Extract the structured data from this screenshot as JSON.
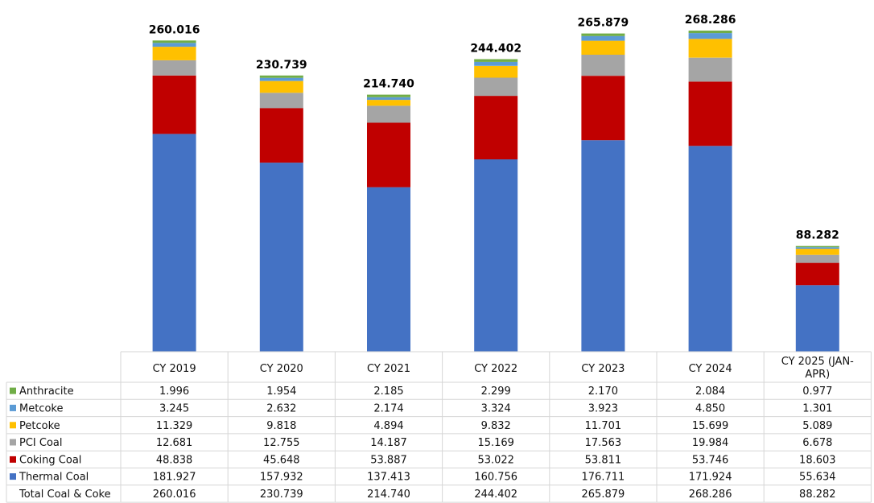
{
  "chart_data": {
    "type": "bar",
    "stacked": true,
    "categories": [
      "CY 2019",
      "CY 2020",
      "CY 2021",
      "CY 2022",
      "CY 2023",
      "CY 2024",
      "CY 2025 (JAN-APR)"
    ],
    "series": [
      {
        "name": "Thermal Coal",
        "color": "#4472C4",
        "values": [
          181.927,
          157.932,
          137.413,
          160.756,
          176.711,
          171.924,
          55.634
        ]
      },
      {
        "name": "Coking Coal",
        "color": "#C00000",
        "values": [
          48.838,
          45.648,
          53.887,
          53.022,
          53.811,
          53.746,
          18.603
        ]
      },
      {
        "name": "PCI Coal",
        "color": "#A5A5A5",
        "values": [
          12.681,
          12.755,
          14.187,
          15.169,
          17.563,
          19.984,
          6.678
        ]
      },
      {
        "name": "Petcoke",
        "color": "#FFC000",
        "values": [
          11.329,
          9.818,
          4.894,
          9.832,
          11.701,
          15.699,
          5.089
        ]
      },
      {
        "name": "Metcoke",
        "color": "#5B9BD5",
        "values": [
          3.245,
          2.632,
          2.174,
          3.324,
          3.923,
          4.85,
          1.301
        ]
      },
      {
        "name": "Anthracite",
        "color": "#70AD47",
        "values": [
          1.996,
          1.954,
          2.185,
          2.299,
          2.17,
          2.084,
          0.977
        ]
      }
    ],
    "totals": {
      "label": "Total Coal & Coke",
      "values": [
        260.016,
        230.739,
        214.74,
        244.402,
        265.879,
        268.286,
        88.282
      ]
    },
    "table_row_order": [
      "Anthracite",
      "Metcoke",
      "Petcoke",
      "PCI Coal",
      "Coking Coal",
      "Thermal Coal"
    ],
    "grid": false
  }
}
